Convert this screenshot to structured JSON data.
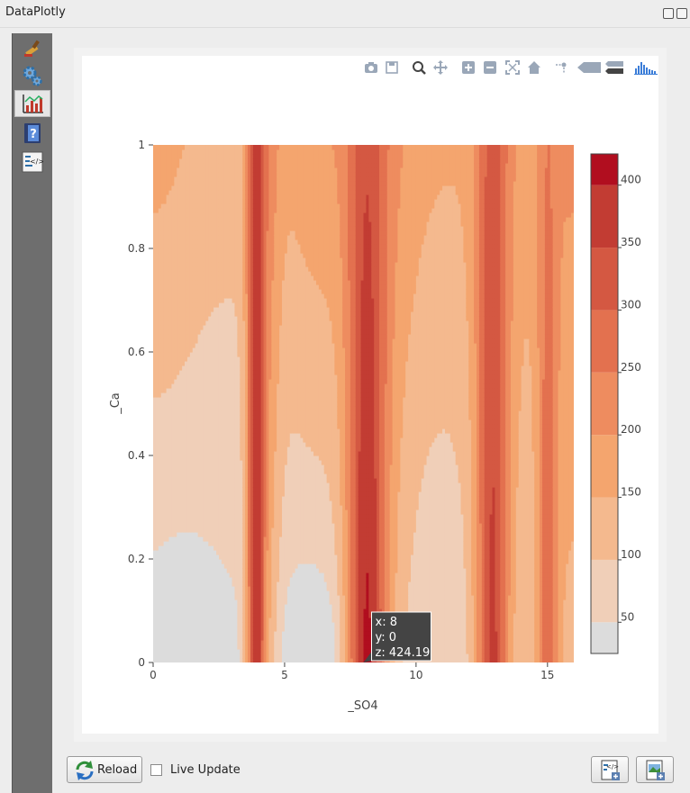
{
  "window": {
    "title": "DataPlotly"
  },
  "sidebar": {
    "items": [
      {
        "name": "plot-properties",
        "icon": "paintbrush-icon"
      },
      {
        "name": "plot-settings",
        "icon": "gears-icon"
      },
      {
        "name": "plot-view",
        "icon": "chart-icon"
      },
      {
        "name": "help",
        "icon": "help-book-icon"
      },
      {
        "name": "raw-html",
        "icon": "code-icon"
      }
    ]
  },
  "modebar": {
    "items": [
      "camera-icon",
      "save-icon",
      "zoom-icon",
      "pan-icon",
      "zoom-in-icon",
      "zoom-out-icon",
      "autoscale-icon",
      "reset-axes-icon",
      "spike-lines-icon",
      "hover-closest-icon",
      "hover-compare-icon",
      "plotly-logo-icon"
    ]
  },
  "chart_data": {
    "type": "contour",
    "title": "",
    "xlabel": "_SO4",
    "ylabel": "_Ca",
    "xlim": [
      0,
      16
    ],
    "ylim": [
      0,
      1
    ],
    "x_ticks": [
      "0",
      "5",
      "10",
      "15"
    ],
    "x_tick_values": [
      0,
      5,
      10,
      15
    ],
    "y_ticks": [
      "0",
      "0.2",
      "0.4",
      "0.6",
      "0.8",
      "1"
    ],
    "y_tick_values": [
      0,
      0.2,
      0.4,
      0.6,
      0.8,
      1
    ],
    "colorscale_ticks": [
      "50",
      "100",
      "150",
      "200",
      "250",
      "300",
      "350",
      "400"
    ],
    "colorscale_tick_values": [
      50,
      100,
      150,
      200,
      250,
      300,
      350,
      400
    ],
    "z_range": [
      25,
      425
    ],
    "colors": [
      "#dcdcdc",
      "#f0cfb8",
      "#f4b98e",
      "#f4a56e",
      "#ee8c5f",
      "#e3714f",
      "#d45842",
      "#c23c33",
      "#b10e1f"
    ],
    "tooltip": {
      "x_line": "x: 8",
      "y_line": "y: 0",
      "z_line": "z: 424.19",
      "x": 8,
      "y": 0,
      "z": 424.19
    }
  },
  "bottom": {
    "reload_label": "Reload",
    "live_update_label": "Live Update",
    "live_update_checked": false
  }
}
